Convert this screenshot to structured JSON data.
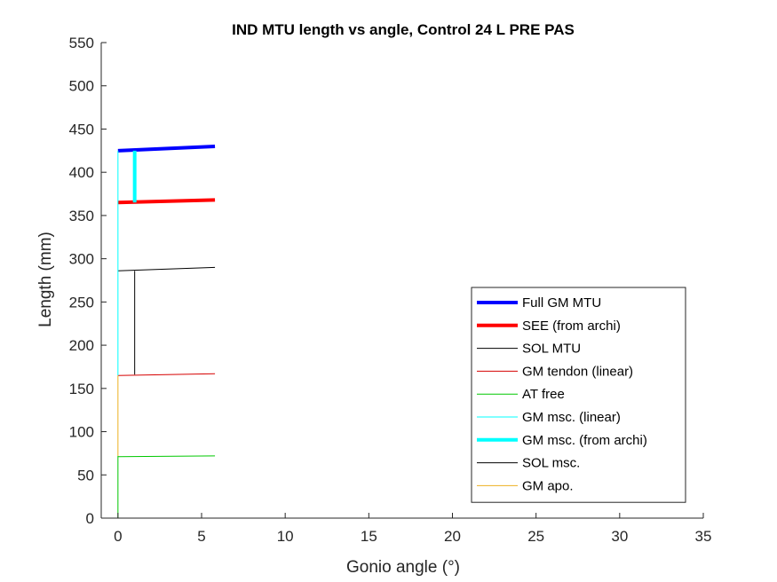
{
  "chart_data": {
    "type": "line",
    "title": "IND MTU length vs angle, Control 24 L PRE PAS",
    "xlabel": "Gonio angle (°)",
    "ylabel": "Length (mm)",
    "xlim": [
      -1,
      35
    ],
    "ylim": [
      0,
      550
    ],
    "xticks": [
      0,
      5,
      10,
      15,
      20,
      25,
      30,
      35
    ],
    "yticks": [
      0,
      50,
      100,
      150,
      200,
      250,
      300,
      350,
      400,
      450,
      500,
      550
    ],
    "grid": false,
    "legend_position": "bottom-right",
    "series": [
      {
        "name": "Full GM MTU",
        "color": "#0000ff",
        "width": 4,
        "x": [
          0,
          5.8
        ],
        "y": [
          425,
          430
        ]
      },
      {
        "name": "SEE (from archi)",
        "color": "#ff0000",
        "width": 4,
        "x": [
          0,
          5.8
        ],
        "y": [
          365,
          368
        ]
      },
      {
        "name": "SOL MTU",
        "color": "#000000",
        "width": 1,
        "x": [
          0,
          5.8
        ],
        "y": [
          286,
          290
        ]
      },
      {
        "name": "GM tendon (linear)",
        "color": "#d60000",
        "width": 1,
        "x": [
          0,
          5.8
        ],
        "y": [
          165,
          167
        ]
      },
      {
        "name": "AT free",
        "color": "#00c800",
        "width": 1,
        "x": [
          0,
          5.8
        ],
        "y": [
          71,
          72
        ]
      },
      {
        "name": "GM msc. (linear)",
        "color": "#00ffff",
        "width": 1,
        "x": [
          0,
          0
        ],
        "y": [
          165,
          425
        ]
      },
      {
        "name": "GM msc. (from archi)",
        "color": "#00ffff",
        "width": 4,
        "x": [
          1,
          1
        ],
        "y": [
          365,
          425
        ]
      },
      {
        "name": "SOL msc.",
        "color": "#000000",
        "width": 1,
        "x": [
          1,
          1
        ],
        "y": [
          166,
          286
        ]
      },
      {
        "name": "GM apo.",
        "color": "#edb120",
        "width": 1,
        "x": [
          0,
          0
        ],
        "y": [
          72,
          165
        ]
      }
    ],
    "extra_segments": [
      {
        "color": "#00c800",
        "width": 1,
        "x": [
          0,
          0
        ],
        "y": [
          0,
          72
        ]
      }
    ]
  }
}
